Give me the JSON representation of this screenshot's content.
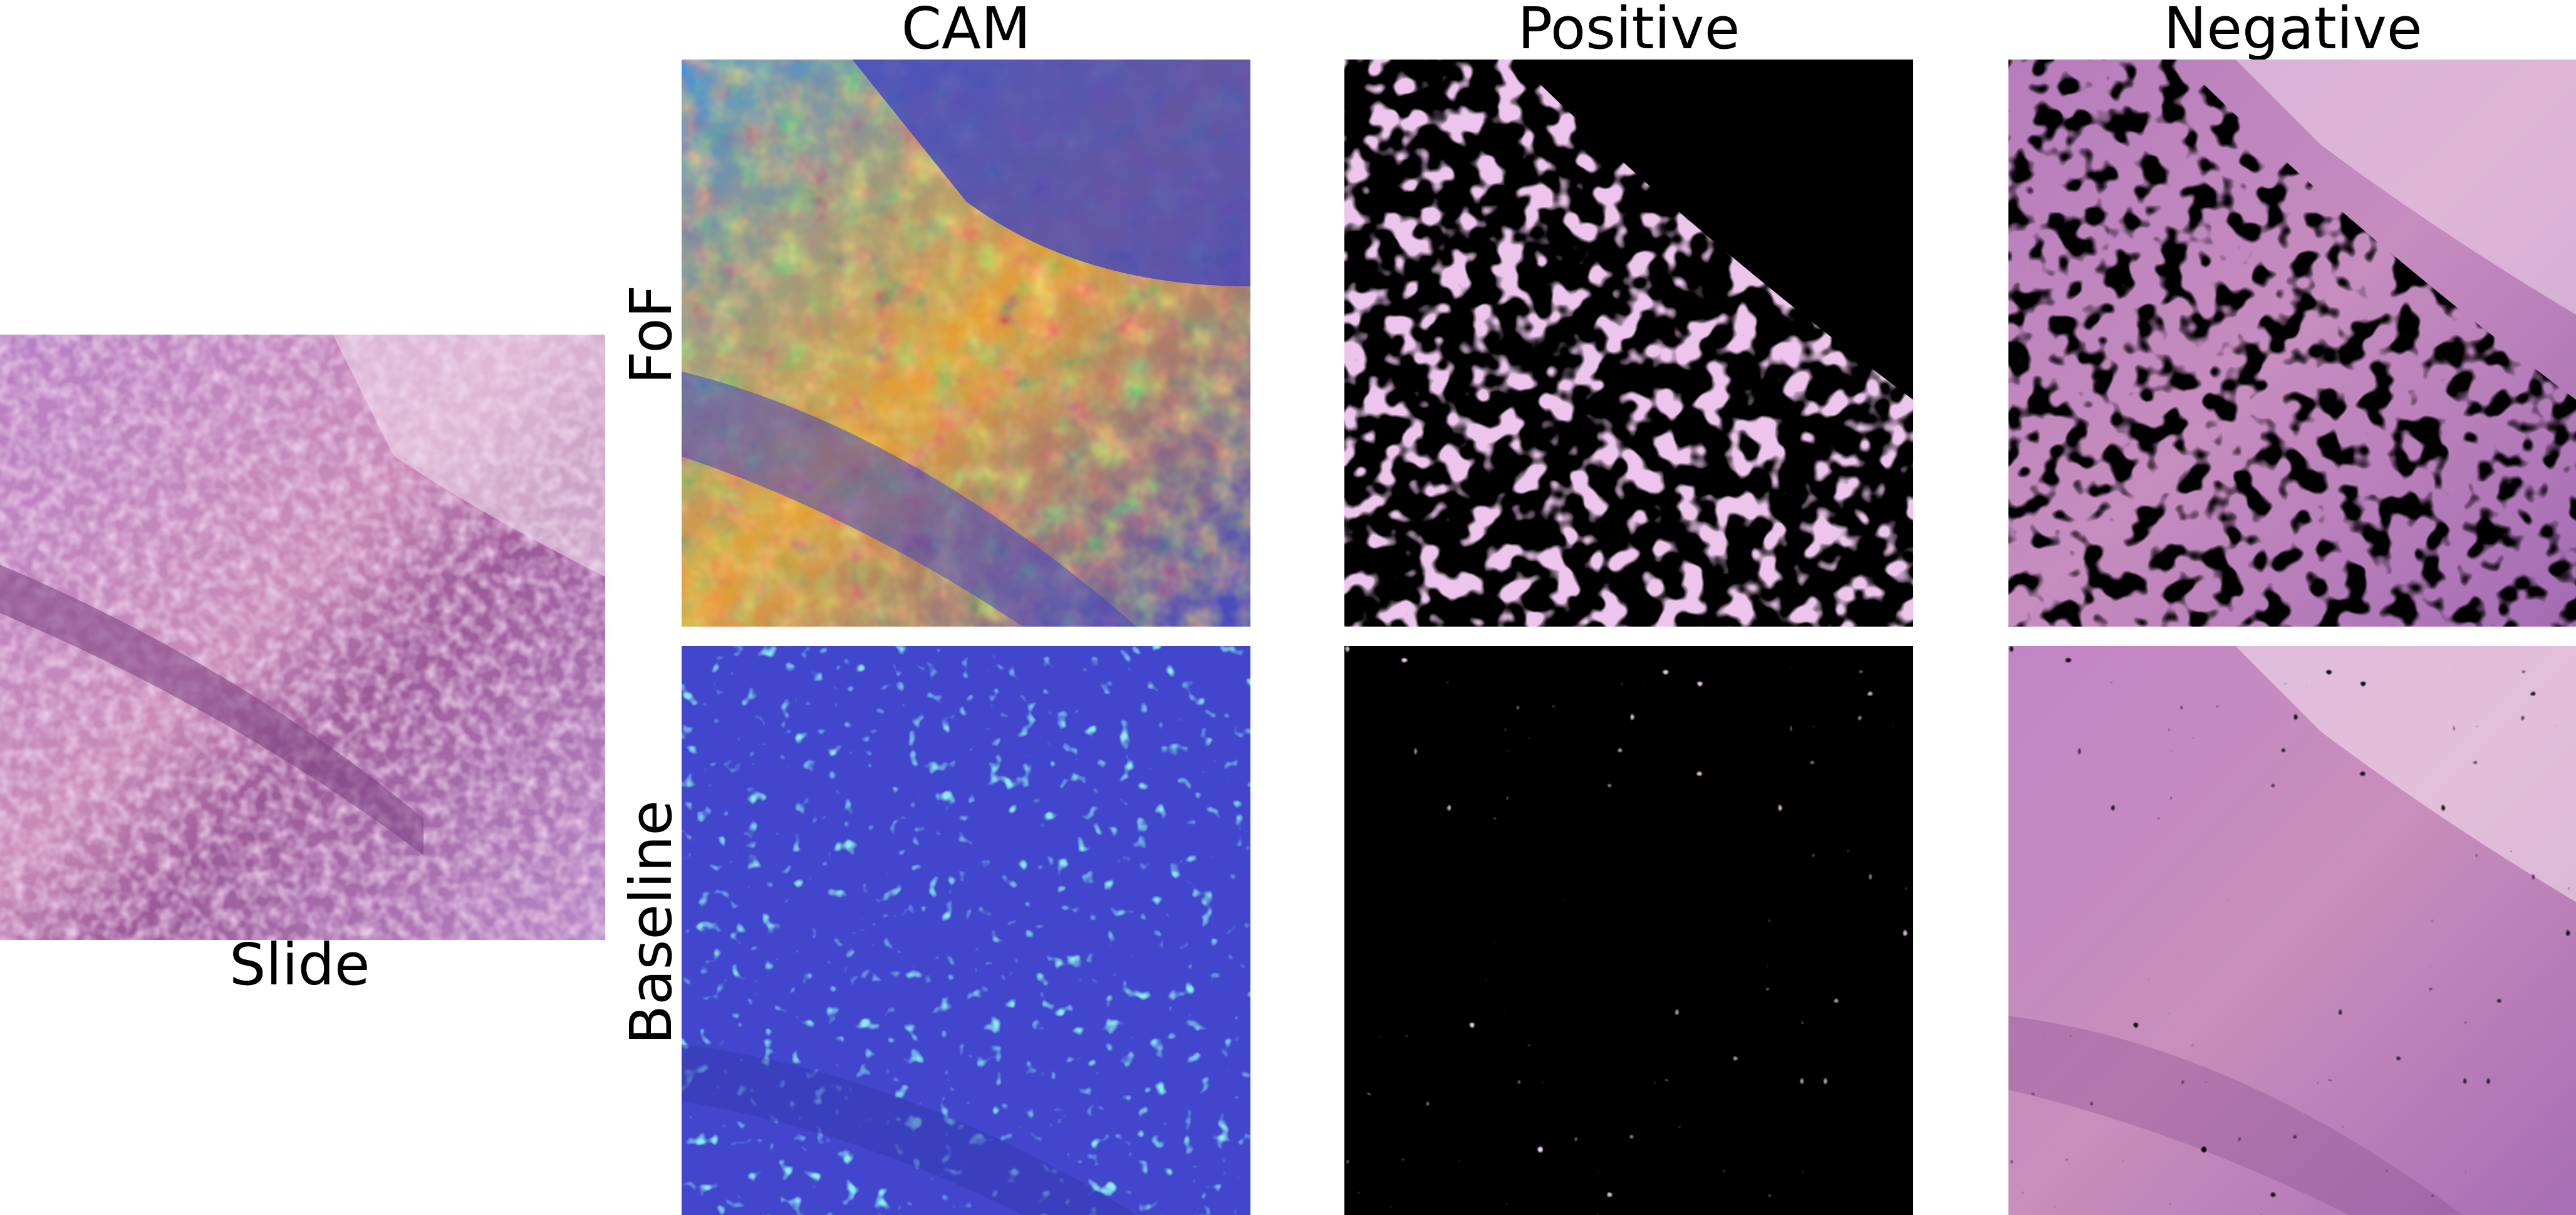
{
  "figure": {
    "source_label": "Slide",
    "columns": [
      "CAM",
      "Positive",
      "Negative"
    ],
    "rows": [
      "FoF",
      "Baseline"
    ]
  },
  "colors": {
    "tissue_light": "#d9a6d8",
    "tissue_mid": "#b975b8",
    "tissue_dark": "#7a3f7e",
    "background_white": "#fbeef6",
    "mask_black": "#000000",
    "cam_low": "#3b3fcf",
    "cam_mid": "#39c7d6",
    "cam_high": "#f2b138",
    "cam_peak": "#e2421c"
  }
}
